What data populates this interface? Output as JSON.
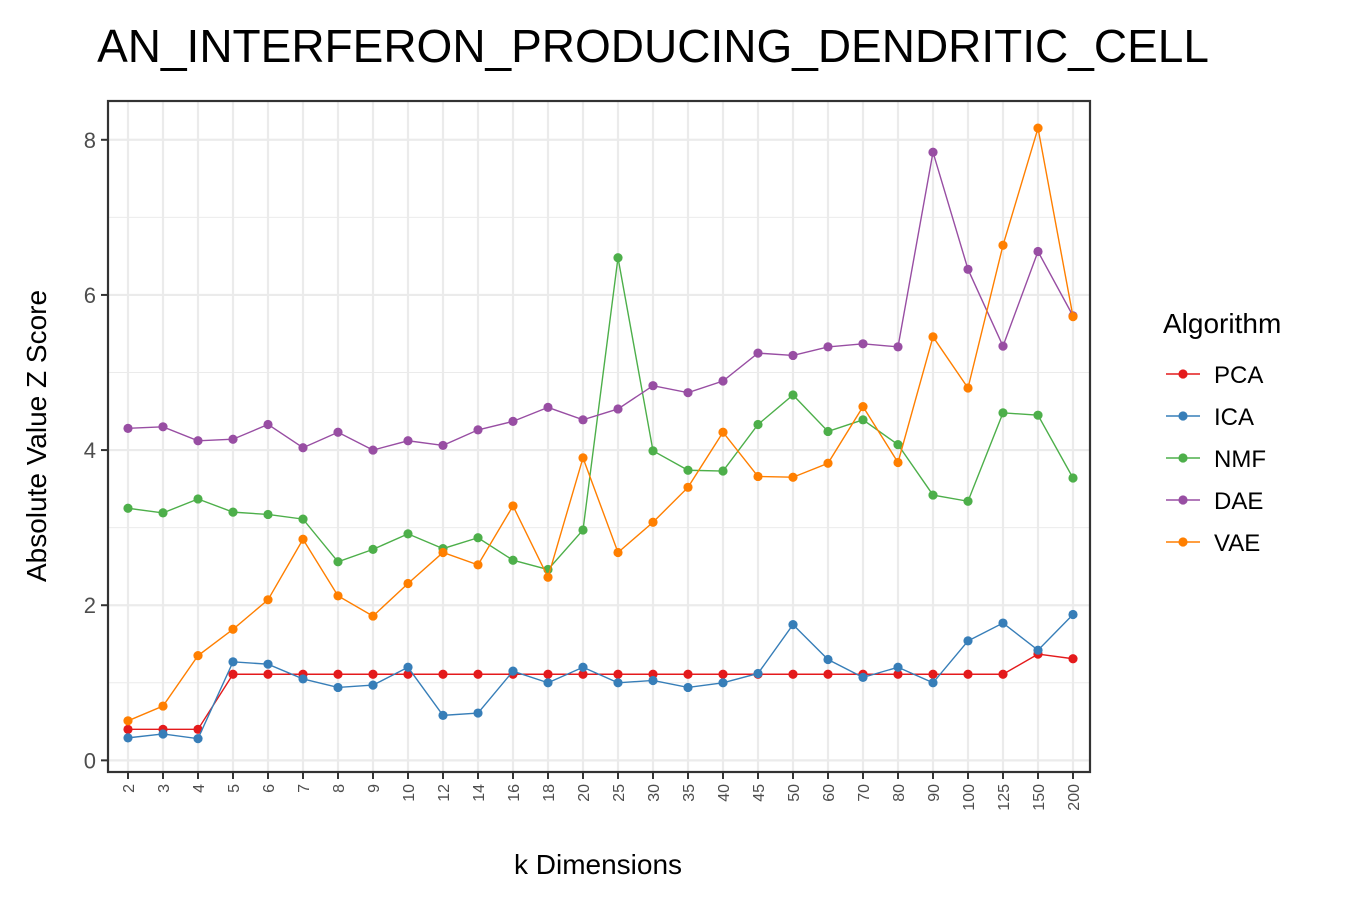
{
  "chart_data": {
    "type": "line",
    "title": "AN_INTERFERON_PRODUCING_DENDRITIC_CELL",
    "xlabel": "k Dimensions",
    "ylabel": "Absolute Value Z Score",
    "categories": [
      "2",
      "3",
      "4",
      "5",
      "6",
      "7",
      "8",
      "9",
      "10",
      "12",
      "14",
      "16",
      "18",
      "20",
      "25",
      "30",
      "35",
      "40",
      "45",
      "50",
      "60",
      "70",
      "80",
      "90",
      "100",
      "125",
      "150",
      "200"
    ],
    "ylim": [
      -0.15,
      8.5
    ],
    "yticks": [
      0,
      2,
      4,
      6,
      8
    ],
    "grid": true,
    "legend_position": "right",
    "legend_title": "Algorithm",
    "series": [
      {
        "name": "PCA",
        "color": "#e41a1c",
        "values": [
          0.4,
          0.4,
          0.4,
          1.11,
          1.11,
          1.11,
          1.11,
          1.11,
          1.11,
          1.11,
          1.11,
          1.11,
          1.11,
          1.11,
          1.11,
          1.11,
          1.11,
          1.11,
          1.11,
          1.11,
          1.11,
          1.11,
          1.11,
          1.11,
          1.11,
          1.11,
          1.37,
          1.31
        ]
      },
      {
        "name": "ICA",
        "color": "#377eb8",
        "values": [
          0.29,
          0.34,
          0.28,
          1.27,
          1.24,
          1.05,
          0.94,
          0.97,
          1.2,
          0.58,
          0.61,
          1.15,
          1.0,
          1.2,
          1.0,
          1.03,
          0.94,
          1.0,
          1.12,
          1.75,
          1.3,
          1.07,
          1.2,
          1.0,
          1.54,
          1.77,
          1.42,
          1.88
        ]
      },
      {
        "name": "NMF",
        "color": "#4daf4a",
        "values": [
          3.25,
          3.19,
          3.37,
          3.2,
          3.17,
          3.11,
          2.56,
          2.72,
          2.92,
          2.73,
          2.87,
          2.58,
          2.46,
          2.97,
          6.48,
          3.99,
          3.74,
          3.73,
          4.33,
          4.71,
          4.24,
          4.39,
          4.07,
          3.42,
          3.34,
          4.48,
          4.45,
          3.64
        ]
      },
      {
        "name": "DAE",
        "color": "#984ea3",
        "values": [
          4.28,
          4.3,
          4.12,
          4.14,
          4.33,
          4.03,
          4.23,
          4.0,
          4.12,
          4.06,
          4.26,
          4.37,
          4.55,
          4.39,
          4.53,
          4.83,
          4.74,
          4.89,
          5.25,
          5.22,
          5.33,
          5.37,
          5.33,
          7.84,
          6.33,
          5.34,
          6.56,
          5.73
        ]
      },
      {
        "name": "VAE",
        "color": "#ff7f00",
        "values": [
          0.51,
          0.7,
          1.35,
          1.69,
          2.07,
          2.85,
          2.12,
          1.86,
          2.28,
          2.68,
          2.52,
          3.28,
          2.36,
          3.9,
          2.68,
          3.07,
          3.52,
          4.23,
          3.66,
          3.65,
          3.83,
          4.56,
          3.84,
          5.46,
          4.8,
          6.64,
          8.15,
          5.72
        ]
      }
    ]
  }
}
